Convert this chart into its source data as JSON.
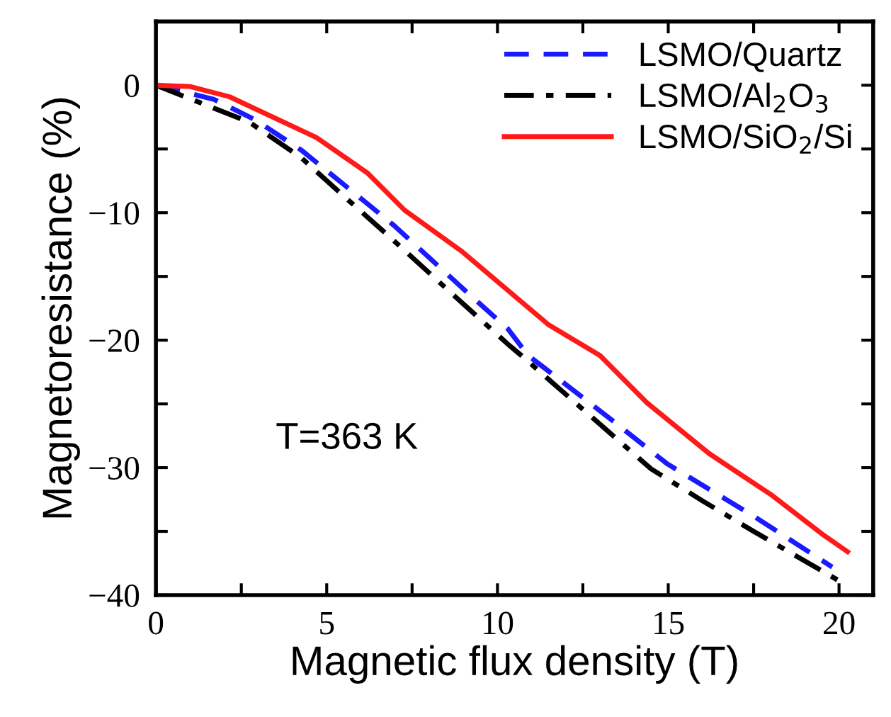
{
  "chart_data": {
    "type": "line",
    "xlabel": "Magnetic flux density (T)",
    "ylabel": "Magnetoresistance (%)",
    "xlim": [
      0,
      21
    ],
    "ylim": [
      -40,
      5
    ],
    "xticks": [
      0,
      {
        "value": 2.5,
        "label": null
      },
      5,
      {
        "value": 7.5,
        "label": null
      },
      10,
      {
        "value": 12.5,
        "label": null
      },
      15,
      {
        "value": 17.5,
        "label": null
      },
      20
    ],
    "yticks": [
      -40,
      {
        "value": -35,
        "label": null
      },
      -30,
      {
        "value": -25,
        "label": null
      },
      -20,
      {
        "value": -15,
        "label": null
      },
      -10,
      {
        "value": -5,
        "label": null
      },
      0
    ],
    "grid": false,
    "legend": "top right",
    "annotations": [
      "T=363 K"
    ],
    "series": [
      {
        "name": "LSMO/Quartz",
        "color": "#1a1aff",
        "line_style": "dashed",
        "x": [
          0,
          1.69,
          2.9,
          4.26,
          5.46,
          6.97,
          9.09,
          10.3,
          10.9,
          13.46,
          14.97,
          17.5,
          19.8
        ],
        "values": [
          0,
          -1.1,
          -2.7,
          -5.1,
          -7.7,
          -11.0,
          -16.2,
          -19.1,
          -21.2,
          -26.5,
          -29.7,
          -33.8,
          -37.8
        ]
      },
      {
        "name": "LSMO/Al$_{2}$O$_{3}$",
        "color": "#000000",
        "line_style": "dashdot",
        "x": [
          0,
          2.74,
          4.26,
          5.46,
          6.97,
          8.77,
          10.3,
          10.7,
          13.3,
          14.5,
          16.0,
          17.5,
          19.95
        ],
        "values": [
          0,
          -2.9,
          -5.7,
          -8.6,
          -12.2,
          -16.6,
          -20.3,
          -21.2,
          -27.3,
          -30.1,
          -32.6,
          -35.0,
          -38.8
        ]
      },
      {
        "name": "LSMO/SiO$_{2}$/Si",
        "color": "#ff1a1a",
        "line_style": "solid",
        "x": [
          0,
          1.0,
          2.15,
          4.7,
          6.2,
          7.28,
          8.94,
          10.44,
          11.5,
          13.0,
          14.37,
          16.2,
          18.0,
          19.5,
          20.25
        ],
        "values": [
          0,
          -0.1,
          -0.9,
          -4.1,
          -6.9,
          -9.8,
          -13.0,
          -16.4,
          -18.8,
          -21.2,
          -24.9,
          -28.9,
          -32.1,
          -35.2,
          -36.6
        ]
      }
    ]
  }
}
